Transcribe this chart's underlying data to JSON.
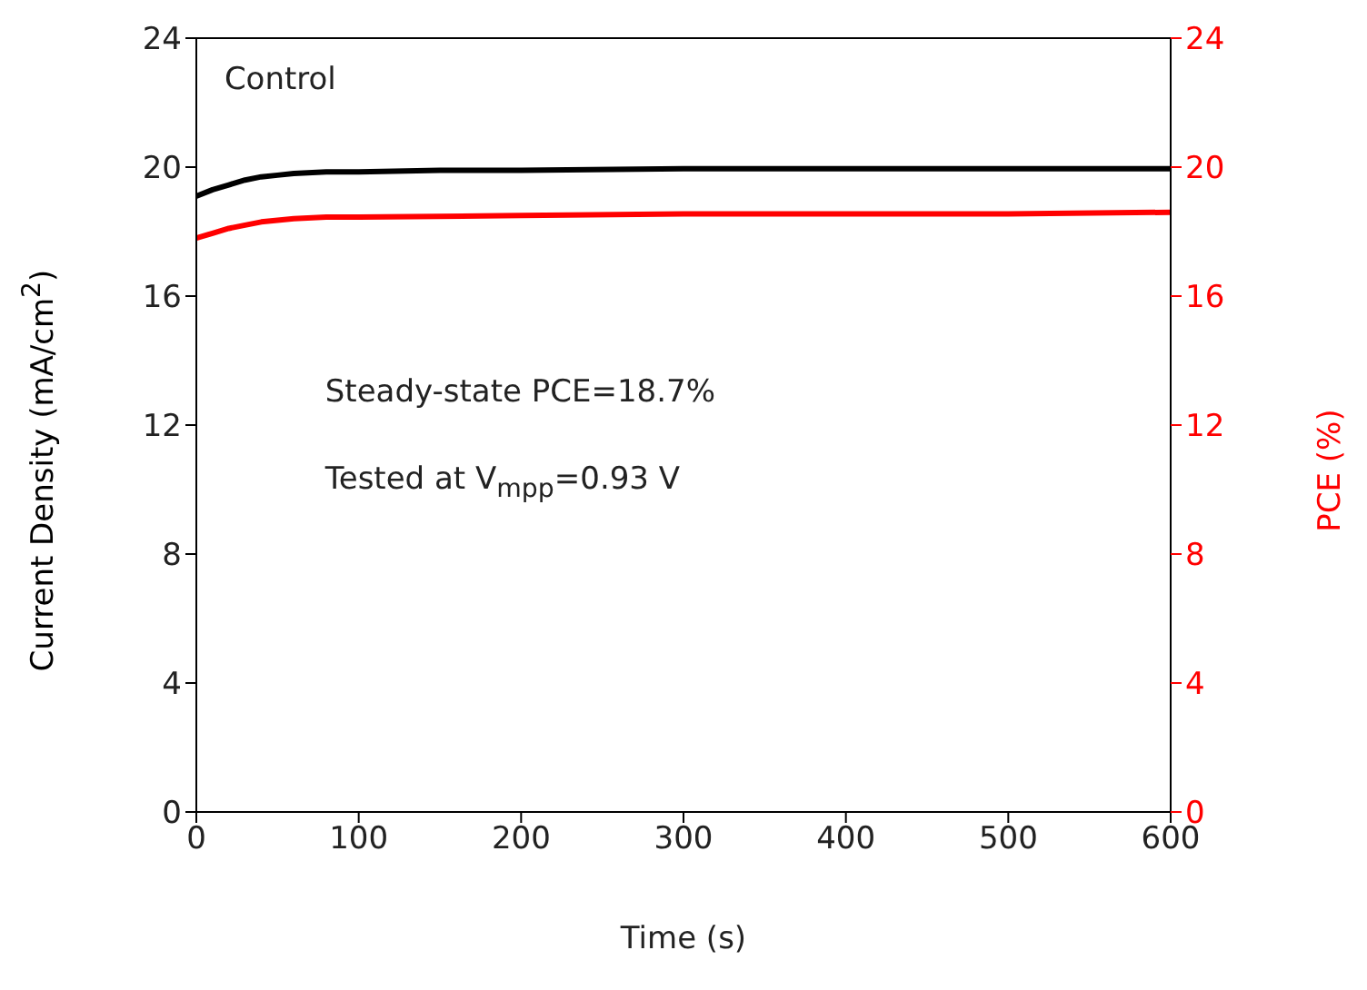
{
  "chart_data": {
    "type": "line",
    "xlabel": "Time (s)",
    "ylabel": "Current Density (mA/cm$^{2}$)",
    "y2label": "PCE (%)",
    "series": [
      {
        "color": "#000000",
        "x": [
          0,
          10,
          20,
          30,
          40,
          50,
          60,
          80,
          100,
          150,
          200,
          300,
          400,
          500,
          600
        ],
        "values": [
          19.1,
          19.3,
          19.45,
          19.6,
          19.7,
          19.75,
          19.8,
          19.85,
          19.85,
          19.9,
          19.9,
          19.95,
          19.95,
          19.95,
          19.95
        ]
      },
      {
        "color": "#ff0000",
        "axis": "y2",
        "x": [
          0,
          10,
          20,
          30,
          40,
          60,
          80,
          100,
          200,
          300,
          400,
          500,
          600
        ],
        "values": [
          17.8,
          17.95,
          18.1,
          18.2,
          18.3,
          18.4,
          18.45,
          18.45,
          18.5,
          18.55,
          18.55,
          18.55,
          18.6
        ]
      }
    ],
    "xlim": [
      0,
      600
    ],
    "xticks": [
      0,
      100,
      200,
      300,
      400,
      500,
      600
    ],
    "ylim": [
      0,
      24
    ],
    "yticks": [
      0,
      4,
      8,
      12,
      16,
      20,
      24
    ],
    "y2lim": [
      0,
      24
    ],
    "y2ticks": [
      0,
      4,
      8,
      12,
      16,
      20,
      24
    ],
    "annotations": [
      "Control",
      "Steady-state PCE=18.7%",
      "Tested at V$_{mpp}$=0.93 V"
    ],
    "grid": false,
    "legend": false,
    "marker": "none",
    "line_style": "solid"
  }
}
